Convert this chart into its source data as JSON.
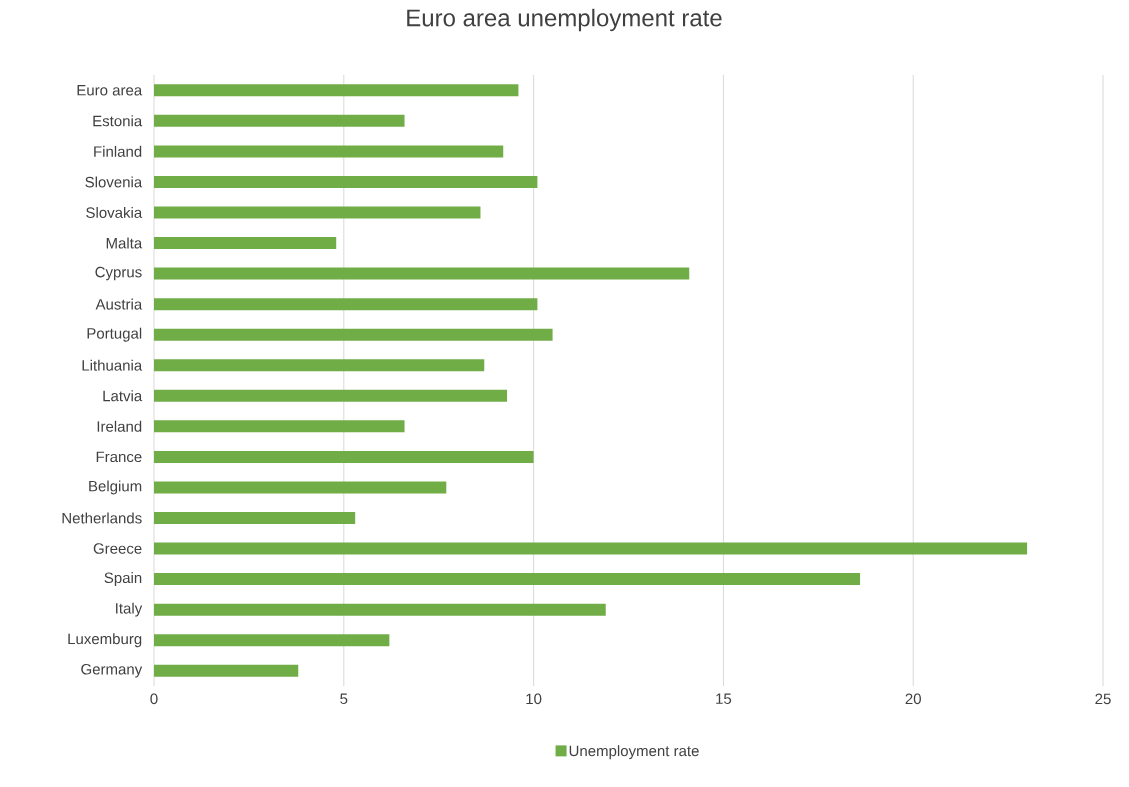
{
  "chart_data": {
    "type": "bar",
    "orientation": "horizontal",
    "title": "Euro area unemployment rate",
    "categories": [
      "Euro area",
      "Estonia",
      "Finland",
      "Slovenia",
      "Slovakia",
      "Malta",
      "Cyprus",
      "Austria",
      "Portugal",
      "Lithuania",
      "Latvia",
      "Ireland",
      "France",
      "Belgium",
      "Netherlands",
      "Greece",
      "Spain",
      "Italy",
      "Luxemburg",
      "Germany"
    ],
    "series": [
      {
        "name": "Unemployment rate",
        "color": "#70ad47",
        "values": [
          9.6,
          6.6,
          9.2,
          10.1,
          8.6,
          4.8,
          14.1,
          10.1,
          10.5,
          8.7,
          9.3,
          6.6,
          10.0,
          7.7,
          5.3,
          23.0,
          18.6,
          11.9,
          6.2,
          3.8
        ]
      }
    ],
    "xlim": [
      0,
      25
    ],
    "xticks": [
      0,
      5,
      10,
      15,
      20,
      25
    ],
    "grid": "x",
    "legend": "bottom"
  }
}
